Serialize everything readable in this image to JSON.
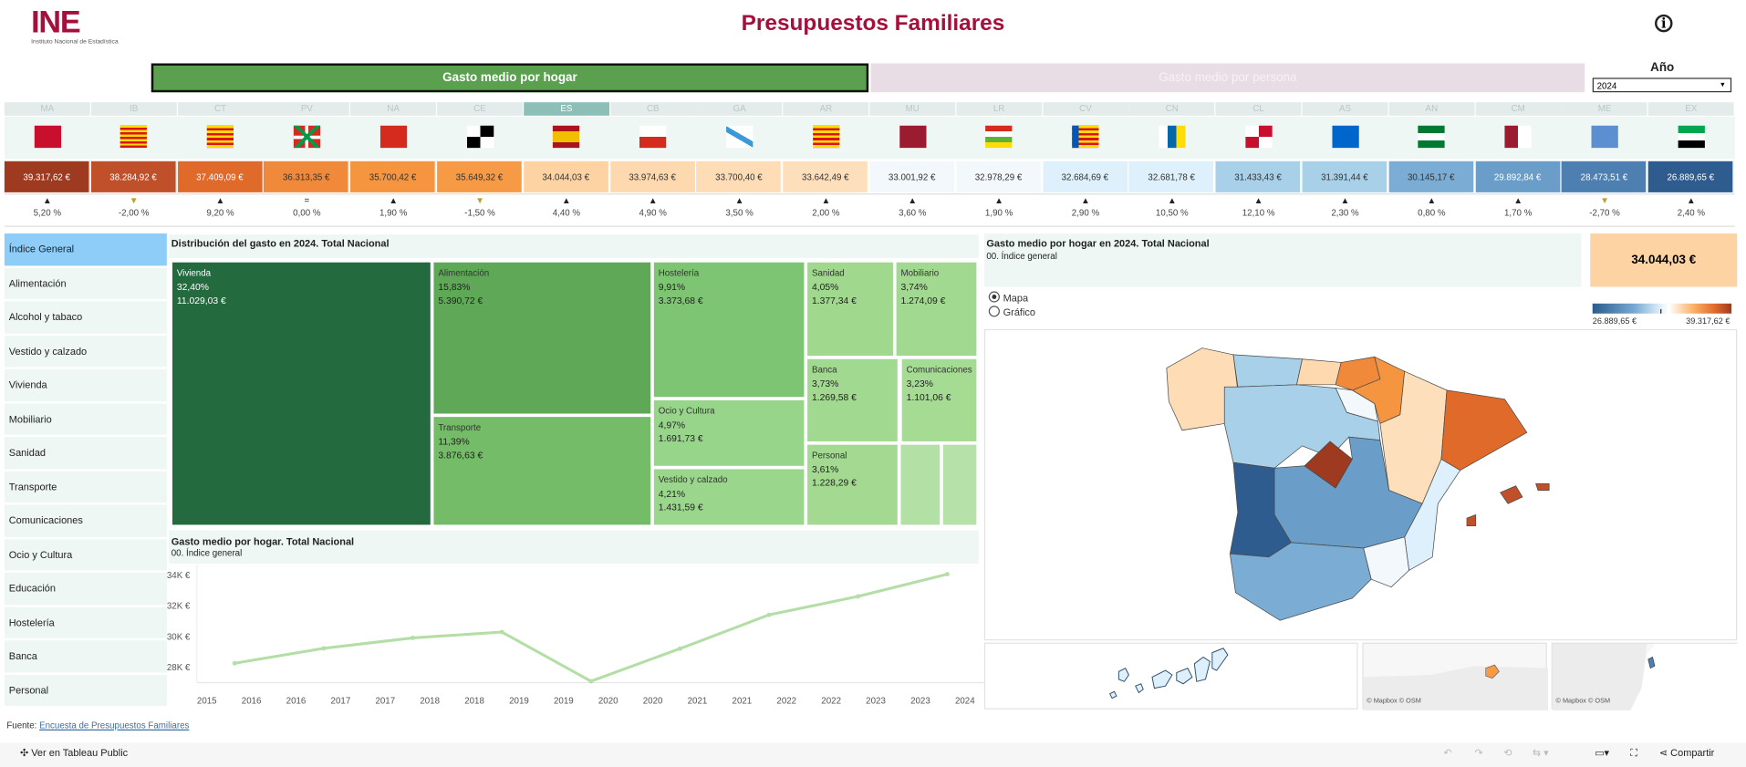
{
  "header": {
    "logo_text": "INE",
    "logo_subtitle": "Instituto Nacional de Estadística",
    "title": "Presupuestos Familiares",
    "info_icon": "info-icon"
  },
  "tabs": [
    {
      "label": "Gasto medio por hogar",
      "active": true
    },
    {
      "label": "Gasto medio por persona",
      "active": false
    }
  ],
  "year_filter": {
    "label": "Año",
    "value": "2024"
  },
  "regions": [
    {
      "code": "MA",
      "value": "39.317,62 €",
      "arrow": "▲",
      "change": "5,20 %",
      "color": "#9e3a20",
      "text": "#fff"
    },
    {
      "code": "IB",
      "value": "38.284,92 €",
      "arrow": "▼",
      "change": "-2,00 %",
      "color": "#c0502a",
      "text": "#fff"
    },
    {
      "code": "CT",
      "value": "37.409,09 €",
      "arrow": "▲",
      "change": "9,20 %",
      "color": "#e06a2a",
      "text": "#fff"
    },
    {
      "code": "PV",
      "value": "36.313,35 €",
      "arrow": "=",
      "change": "0,00 %",
      "color": "#f08a3a",
      "text": "#333"
    },
    {
      "code": "NA",
      "value": "35.700,42 €",
      "arrow": "▲",
      "change": "1,90 %",
      "color": "#f59540",
      "text": "#333"
    },
    {
      "code": "CE",
      "value": "35.649,32 €",
      "arrow": "▼",
      "change": "-1,50 %",
      "color": "#f79a45",
      "text": "#333"
    },
    {
      "code": "ES",
      "value": "34.044,03 €",
      "arrow": "▲",
      "change": "4,40 %",
      "color": "#fdd3a4",
      "text": "#333"
    },
    {
      "code": "CB",
      "value": "33.974,63 €",
      "arrow": "▲",
      "change": "4,90 %",
      "color": "#fed8ae",
      "text": "#333"
    },
    {
      "code": "GA",
      "value": "33.700,40 €",
      "arrow": "▲",
      "change": "3,50 %",
      "color": "#fedcb5",
      "text": "#333"
    },
    {
      "code": "AR",
      "value": "33.642,49 €",
      "arrow": "▲",
      "change": "2,00 %",
      "color": "#fedfbb",
      "text": "#333"
    },
    {
      "code": "MU",
      "value": "33.001,92 €",
      "arrow": "▲",
      "change": "3,60 %",
      "color": "#f3f8fc",
      "text": "#333"
    },
    {
      "code": "LR",
      "value": "32.978,29 €",
      "arrow": "▲",
      "change": "1,90 %",
      "color": "#f3f8fc",
      "text": "#333"
    },
    {
      "code": "CV",
      "value": "32.684,69 €",
      "arrow": "▲",
      "change": "2,90 %",
      "color": "#def0fb",
      "text": "#333"
    },
    {
      "code": "CN",
      "value": "32.681,78 €",
      "arrow": "▲",
      "change": "10,50 %",
      "color": "#def0fb",
      "text": "#333"
    },
    {
      "code": "CL",
      "value": "31.433,43 €",
      "arrow": "▲",
      "change": "12,10 %",
      "color": "#a8d0e8",
      "text": "#333"
    },
    {
      "code": "AS",
      "value": "31.391,44 €",
      "arrow": "▲",
      "change": "2,30 %",
      "color": "#a8d0e8",
      "text": "#333"
    },
    {
      "code": "AN",
      "value": "30.145,17 €",
      "arrow": "▲",
      "change": "0,80 %",
      "color": "#7bacd3",
      "text": "#333"
    },
    {
      "code": "CM",
      "value": "29.892,84 €",
      "arrow": "▲",
      "change": "1,70 %",
      "color": "#6a9ec8",
      "text": "#fff"
    },
    {
      "code": "ME",
      "value": "28.473,51 €",
      "arrow": "▼",
      "change": "-2,70 %",
      "color": "#4d7fb0",
      "text": "#fff"
    },
    {
      "code": "EX",
      "value": "26.889,65 €",
      "arrow": "▲",
      "change": "2,40 %",
      "color": "#2f5c8e",
      "text": "#fff"
    }
  ],
  "selected_region": "ES",
  "colors": {
    "up": "#222222",
    "down": "#b8a030",
    "accent": "#a50f3c",
    "tab_active": "#5aa04e"
  },
  "sidebar": {
    "selected": "Índice General",
    "items": [
      "Índice General",
      "Alimentación",
      "Alcohol y tabaco",
      "Vestido y calzado",
      "Vivienda",
      "Mobiliario",
      "Sanidad",
      "Transporte",
      "Comunicaciones",
      "Ocio y Cultura",
      "Educación",
      "Hostelería",
      "Banca",
      "Personal"
    ]
  },
  "treemap": {
    "title": "Distribución del gasto en 2024. Total Nacional",
    "items": [
      {
        "name": "Vivienda",
        "pct": "32,40%",
        "value": "11.029,03 €",
        "color": "#236a3e"
      },
      {
        "name": "Alimentación",
        "pct": "15,83%",
        "value": "5.390,72 €",
        "color": "#5fa858"
      },
      {
        "name": "Transporte",
        "pct": "11,39%",
        "value": "3.876,63 €",
        "color": "#74bc68"
      },
      {
        "name": "Hostelería",
        "pct": "9,91%",
        "value": "3.373,68 €",
        "color": "#7dc572"
      },
      {
        "name": "Ocio y Cultura",
        "pct": "4,97%",
        "value": "1.691,73 €",
        "color": "#97d68a"
      },
      {
        "name": "Vestido y calzado",
        "pct": "4,21%",
        "value": "1.431,59 €",
        "color": "#9ad78c"
      },
      {
        "name": "Sanidad",
        "pct": "4,05%",
        "value": "1.377,34 €",
        "color": "#a0d88e"
      },
      {
        "name": "Mobiliario",
        "pct": "3,74%",
        "value": "1.274,09 €",
        "color": "#a2d990"
      },
      {
        "name": "Banca",
        "pct": "3,73%",
        "value": "1.269,58 €",
        "color": "#a2d990"
      },
      {
        "name": "Comunicaciones",
        "pct": "3,23%",
        "value": "1.101,06 €",
        "color": "#a6db94"
      },
      {
        "name": "Personal",
        "pct": "3,61%",
        "value": "1.228,29 €",
        "color": "#a3d991"
      },
      {
        "name": "",
        "pct": "",
        "value": "",
        "color": "#b3e0a5"
      },
      {
        "name": "",
        "pct": "",
        "value": "",
        "color": "#b6e1a8"
      }
    ]
  },
  "chart_data": {
    "type": "line",
    "title": "Gasto medio por hogar. Total Nacional",
    "subtitle": "00. Índice general",
    "x_tick_labels": [
      "2015",
      "2016",
      "2016",
      "2017",
      "2017",
      "2018",
      "2018",
      "2019",
      "2019",
      "2020",
      "2020",
      "2021",
      "2021",
      "2022",
      "2022",
      "2023",
      "2023",
      "2024"
    ],
    "x": [
      2016,
      2017,
      2018,
      2019,
      2020,
      2021,
      2022,
      2023,
      2024
    ],
    "values": [
      28250,
      29220,
      29900,
      30280,
      27080,
      29200,
      31400,
      32600,
      34044.03
    ],
    "y_ticks": [
      "28K €",
      "30K €",
      "32K €",
      "34K €"
    ],
    "y_tick_values": [
      28000,
      30000,
      32000,
      34000
    ],
    "ylim": [
      26700,
      34500
    ],
    "color": "#b3dea5",
    "grid": false
  },
  "map_panel": {
    "title": "Gasto medio por hogar en 2024. Total Nacional",
    "subtitle": "00. Índice general",
    "kpi": "34.044,03 €",
    "radio": [
      {
        "label": "Mapa",
        "checked": true
      },
      {
        "label": "Gráfico",
        "checked": false
      }
    ],
    "legend_min": "26.889,65 €",
    "legend_max": "39.317,62 €",
    "attribution": "© Mapbox  © OSM"
  },
  "footer": {
    "source_label": "Fuente:",
    "source_link": "Encuesta de Presupuestos Familiares"
  },
  "toolbar": {
    "tableau_label": "Ver en Tableau Public",
    "share_label": "Compartir"
  }
}
